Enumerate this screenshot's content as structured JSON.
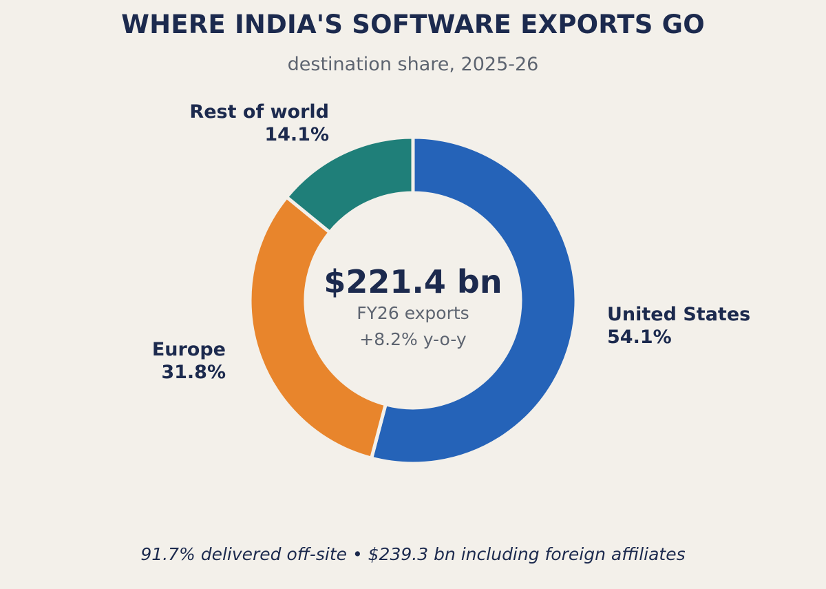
{
  "title": "WHERE INDIA'S SOFTWARE EXPORTS GO",
  "subtitle": "destination share, 2025-26",
  "center": {
    "total": "$221.4 bn",
    "line1": "FY26 exports",
    "line2": "+8.2% y-o-y"
  },
  "footnote": "91.7% delivered off-site  •  $239.3 bn including foreign affiliates",
  "chart_data": {
    "type": "pie",
    "style": "donut",
    "title": "WHERE INDIA'S SOFTWARE EXPORTS GO",
    "subtitle": "destination share, 2025-26",
    "start": "12 o'clock, clockwise",
    "slices": [
      {
        "name": "United States",
        "value": 54.1,
        "label": "54.1%",
        "color": "#2563b8"
      },
      {
        "name": "Europe",
        "value": 31.8,
        "label": "31.8%",
        "color": "#e8852c"
      },
      {
        "name": "Rest of world",
        "value": 14.1,
        "label": "14.1%",
        "color": "#1f7f79"
      }
    ]
  }
}
